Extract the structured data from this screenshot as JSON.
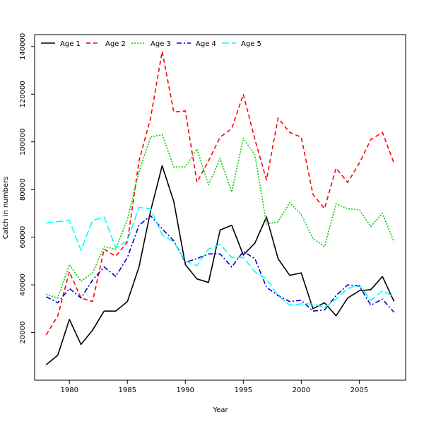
{
  "chart_data": {
    "type": "line",
    "title": "",
    "xlabel": "Year",
    "ylabel": "Catch in numbers",
    "xlim": [
      1977,
      2009
    ],
    "ylim": [
      0,
      145000
    ],
    "xticks": [
      1980,
      1985,
      1990,
      1995,
      2000,
      2005
    ],
    "yticks": [
      20000,
      40000,
      60000,
      80000,
      100000,
      120000,
      140000
    ],
    "grid": false,
    "legend_position": "top-left",
    "x": [
      1978,
      1979,
      1980,
      1981,
      1982,
      1983,
      1984,
      1985,
      1986,
      1987,
      1988,
      1989,
      1990,
      1991,
      1992,
      1993,
      1994,
      1995,
      1996,
      1997,
      1998,
      1999,
      2000,
      2001,
      2002,
      2003,
      2004,
      2005,
      2006,
      2007,
      2008
    ],
    "series": [
      {
        "name": "Age 1",
        "color": "#000000",
        "dash": "",
        "values": [
          6500,
          10500,
          25500,
          15000,
          21000,
          29000,
          29000,
          33000,
          47500,
          71000,
          90000,
          75000,
          48500,
          42500,
          41000,
          63000,
          65000,
          52500,
          57500,
          68500,
          51000,
          44000,
          45000,
          30000,
          32500,
          27000,
          34500,
          37500,
          38000,
          43500,
          33000
        ]
      },
      {
        "name": "Age 2",
        "color": "#ff0000",
        "dash": "6,4",
        "values": [
          19000,
          27000,
          45500,
          34500,
          33000,
          55000,
          52000,
          58000,
          92000,
          110000,
          138000,
          112500,
          113000,
          83000,
          92000,
          102000,
          105500,
          120000,
          101000,
          84000,
          110000,
          104000,
          102000,
          78000,
          72000,
          89000,
          83000,
          91000,
          101000,
          104000,
          91000
        ]
      },
      {
        "name": "Age 3",
        "color": "#00cc00",
        "dash": "2,2",
        "values": [
          36000,
          34500,
          48500,
          41500,
          45000,
          56000,
          55000,
          67500,
          87500,
          102000,
          103000,
          89500,
          89500,
          97000,
          82000,
          93000,
          79000,
          101500,
          94500,
          65500,
          66500,
          74500,
          69500,
          59500,
          56000,
          74000,
          72000,
          71500,
          64500,
          70000,
          58000
        ]
      },
      {
        "name": "Age 4",
        "color": "#0000cc",
        "dash": "7,3,2,3",
        "values": [
          35000,
          32500,
          38500,
          34500,
          42000,
          47500,
          43500,
          51500,
          65000,
          69000,
          63500,
          58500,
          49500,
          51000,
          53000,
          53000,
          47500,
          54000,
          51000,
          39000,
          35500,
          33000,
          33500,
          29000,
          29500,
          35500,
          40000,
          39500,
          31500,
          34000,
          28500
        ]
      },
      {
        "name": "Age 5",
        "color": "#00ffff",
        "dash": "10,4",
        "values": [
          66000,
          66500,
          67000,
          54500,
          67000,
          68500,
          55500,
          58500,
          72500,
          72000,
          61000,
          58000,
          50000,
          48000,
          55000,
          57000,
          51500,
          51500,
          45500,
          42500,
          35500,
          31500,
          32000,
          32000,
          30500,
          34000,
          38500,
          40000,
          33500,
          37500,
          35000
        ]
      }
    ]
  }
}
